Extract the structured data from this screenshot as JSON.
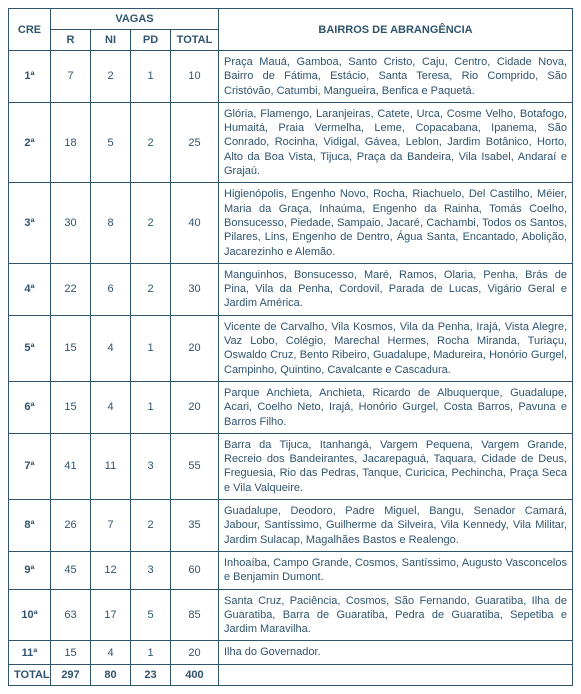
{
  "headers": {
    "cre": "CRE",
    "vagas": "VAGAS",
    "r": "R",
    "ni": "NI",
    "pd": "PD",
    "total": "TOTAL",
    "bairros": "BAIRROS DE ABRANGÊNCIA"
  },
  "rows": [
    {
      "cre": "1ª",
      "r": "7",
      "ni": "2",
      "pd": "1",
      "total": "10",
      "bairros": "Praça Mauá, Gamboa, Santo Cristo, Caju, Centro, Cidade Nova, Bairro de Fátima, Estácio, Santa Teresa, Rio Comprido, São Cristóvão, Catumbi, Mangueira, Benfica e Paquetá."
    },
    {
      "cre": "2ª",
      "r": "18",
      "ni": "5",
      "pd": "2",
      "total": "25",
      "bairros": "Glória, Flamengo, Laranjeiras, Catete, Urca, Cosme Velho, Botafogo, Humaitá, Praia Vermelha, Leme, Copacabana, Ipanema, São Conrado, Rocinha, Vidigal, Gávea, Leblon, Jardim Botânico, Horto, Alto da Boa Vista, Tijuca, Praça da Bandeira, Vila Isabel, Andaraí e Grajaú."
    },
    {
      "cre": "3ª",
      "r": "30",
      "ni": "8",
      "pd": "2",
      "total": "40",
      "bairros": "Higienópolis, Engenho Novo, Rocha, Riachuelo, Del Castilho, Méier, Maria da Graça, Inhaúma, Engenho da Rainha, Tomás Coelho, Bonsucesso, Piedade, Sampaio, Jacaré, Cachambi, Todos os Santos, Pilares, Lins, Engenho de Dentro, Água Santa, Encantado, Abolição, Jacarezinho e Alemão."
    },
    {
      "cre": "4ª",
      "r": "22",
      "ni": "6",
      "pd": "2",
      "total": "30",
      "bairros": "Manguinhos, Bonsucesso, Maré, Ramos, Olaria, Penha, Brás de Pina, Vila da Penha, Cordovil, Parada de Lucas, Vigário Geral e Jardim América."
    },
    {
      "cre": "5ª",
      "r": "15",
      "ni": "4",
      "pd": "1",
      "total": "20",
      "bairros": "Vicente de Carvalho, Vila Kosmos, Vila da Penha, Irajá, Vista Alegre, Vaz Lobo, Colégio, Marechal Hermes, Rocha Miranda, Turiaçu, Oswaldo Cruz, Bento Ribeiro, Guadalupe, Madureira, Honório Gurgel, Campinho, Quintino, Cavalcante e Cascadura."
    },
    {
      "cre": "6ª",
      "r": "15",
      "ni": "4",
      "pd": "1",
      "total": "20",
      "bairros": "Parque Anchieta, Anchieta, Ricardo de Albuquerque, Guadalupe, Acari, Coelho Neto, Irajá, Honório Gurgel, Costa Barros, Pavuna e Barros Filho."
    },
    {
      "cre": "7ª",
      "r": "41",
      "ni": "11",
      "pd": "3",
      "total": "55",
      "bairros": "Barra da Tijuca, Itanhangá, Vargem Pequena, Vargem Grande, Recreio dos Bandeirantes, Jacarepaguá, Taquara, Cidade de Deus, Freguesia, Rio das Pedras, Tanque, Curicica, Pechincha, Praça Seca e Vila Valqueire."
    },
    {
      "cre": "8ª",
      "r": "26",
      "ni": "7",
      "pd": "2",
      "total": "35",
      "bairros": "Guadalupe, Deodoro, Padre Miguel, Bangu, Senador Camará, Jabour, Santíssimo, Guilherme da Silveira, Vila Kennedy, Vila Militar, Jardim Sulacap, Magalhães Bastos e Realengo."
    },
    {
      "cre": "9ª",
      "r": "45",
      "ni": "12",
      "pd": "3",
      "total": "60",
      "bairros": "Inhoaíba, Campo Grande, Cosmos, Santíssimo, Augusto Vasconcelos e Benjamin Dumont."
    },
    {
      "cre": "10ª",
      "r": "63",
      "ni": "17",
      "pd": "5",
      "total": "85",
      "bairros": "Santa Cruz, Paciência, Cosmos, São Fernando, Guaratiba, Ilha de Guaratiba, Barra de Guaratiba, Pedra de Guaratiba, Sepetiba e Jardim Maravilha."
    },
    {
      "cre": "11ª",
      "r": "15",
      "ni": "4",
      "pd": "1",
      "total": "20",
      "bairros": "Ilha do Governador."
    }
  ],
  "totalRow": {
    "label": "TOTAL",
    "r": "297",
    "ni": "80",
    "pd": "23",
    "total": "400",
    "bairros": ""
  }
}
